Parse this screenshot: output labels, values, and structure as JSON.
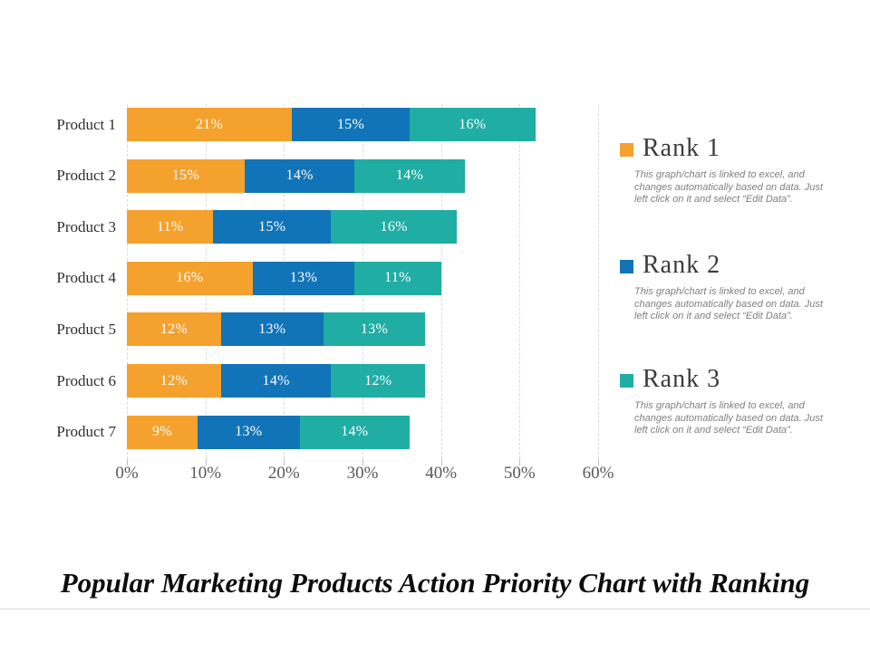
{
  "title": {
    "text": "Popular Marketing Products Action Priority Chart with Ranking"
  },
  "chart_data": {
    "type": "bar",
    "orientation": "horizontal-stacked",
    "categories": [
      "Product 1",
      "Product 2",
      "Product 3",
      "Product 4",
      "Product 5",
      "Product 6",
      "Product 7"
    ],
    "series": [
      {
        "name": "Rank 1",
        "color": "#F5A12D",
        "values": [
          21,
          15,
          11,
          16,
          12,
          12,
          9
        ]
      },
      {
        "name": "Rank 2",
        "color": "#1274B8",
        "values": [
          15,
          14,
          15,
          13,
          13,
          14,
          13
        ]
      },
      {
        "name": "Rank 3",
        "color": "#1FADA4",
        "values": [
          16,
          14,
          16,
          11,
          13,
          12,
          14
        ]
      }
    ],
    "value_suffix": "%",
    "x_ticks": [
      "0%",
      "10%",
      "20%",
      "30%",
      "40%",
      "50%",
      "60%"
    ],
    "xlim": [
      0,
      60
    ],
    "grid": "vertical-dashed",
    "legend_position": "right"
  },
  "legend": {
    "items": [
      {
        "label": "Rank 1",
        "color": "#F5A12D",
        "description": "This graph/chart is linked to excel, and changes automatically based on data. Just left click on it and select “Edit Data”."
      },
      {
        "label": "Rank 2",
        "color": "#1274B8",
        "description": "This graph/chart is linked to excel, and changes automatically based on data. Just left click on it and select “Edit Data”."
      },
      {
        "label": "Rank 3",
        "color": "#1FADA4",
        "description": "This graph/chart is linked to excel, and changes automatically based on data. Just left click on it and select “Edit Data”."
      }
    ]
  }
}
